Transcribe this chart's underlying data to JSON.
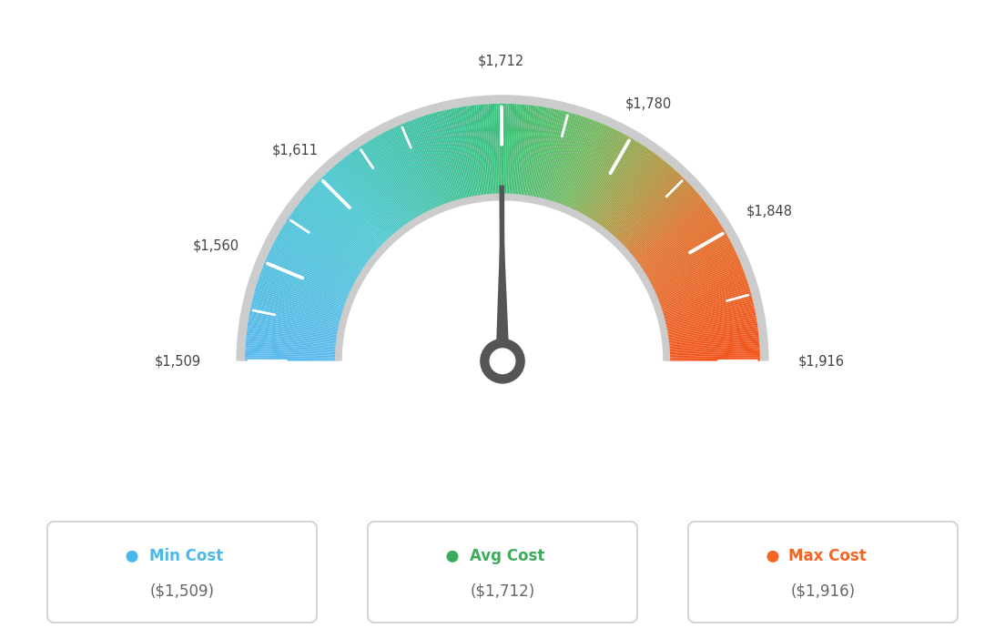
{
  "min_val": 1509,
  "max_val": 1916,
  "avg_val": 1712,
  "needle_value": 1712,
  "tick_labels": [
    "$1,509",
    "$1,560",
    "$1,611",
    "$1,712",
    "$1,780",
    "$1,848",
    "$1,916"
  ],
  "tick_values": [
    1509,
    1560,
    1611,
    1712,
    1780,
    1848,
    1916
  ],
  "color_stops": [
    [
      0.0,
      [
        0.35,
        0.72,
        0.93
      ]
    ],
    [
      0.25,
      [
        0.3,
        0.78,
        0.82
      ]
    ],
    [
      0.42,
      [
        0.25,
        0.75,
        0.6
      ]
    ],
    [
      0.5,
      [
        0.24,
        0.75,
        0.48
      ]
    ],
    [
      0.62,
      [
        0.45,
        0.72,
        0.38
      ]
    ],
    [
      0.7,
      [
        0.65,
        0.62,
        0.28
      ]
    ],
    [
      0.8,
      [
        0.88,
        0.45,
        0.18
      ]
    ],
    [
      1.0,
      [
        0.95,
        0.32,
        0.1
      ]
    ]
  ],
  "legend": [
    {
      "label": "Min Cost",
      "value": "($1,509)",
      "color": "#4ab8e8"
    },
    {
      "label": "Avg Cost",
      "value": "($1,712)",
      "color": "#3daa5c"
    },
    {
      "label": "Max Cost",
      "value": "($1,916)",
      "color": "#f26522"
    }
  ],
  "bg_color": "#ffffff",
  "outer_r": 0.82,
  "inner_r": 0.52,
  "gauge_border_color": "#d0d0d0",
  "needle_color": "#555555",
  "needle_circle_color": "#555555"
}
